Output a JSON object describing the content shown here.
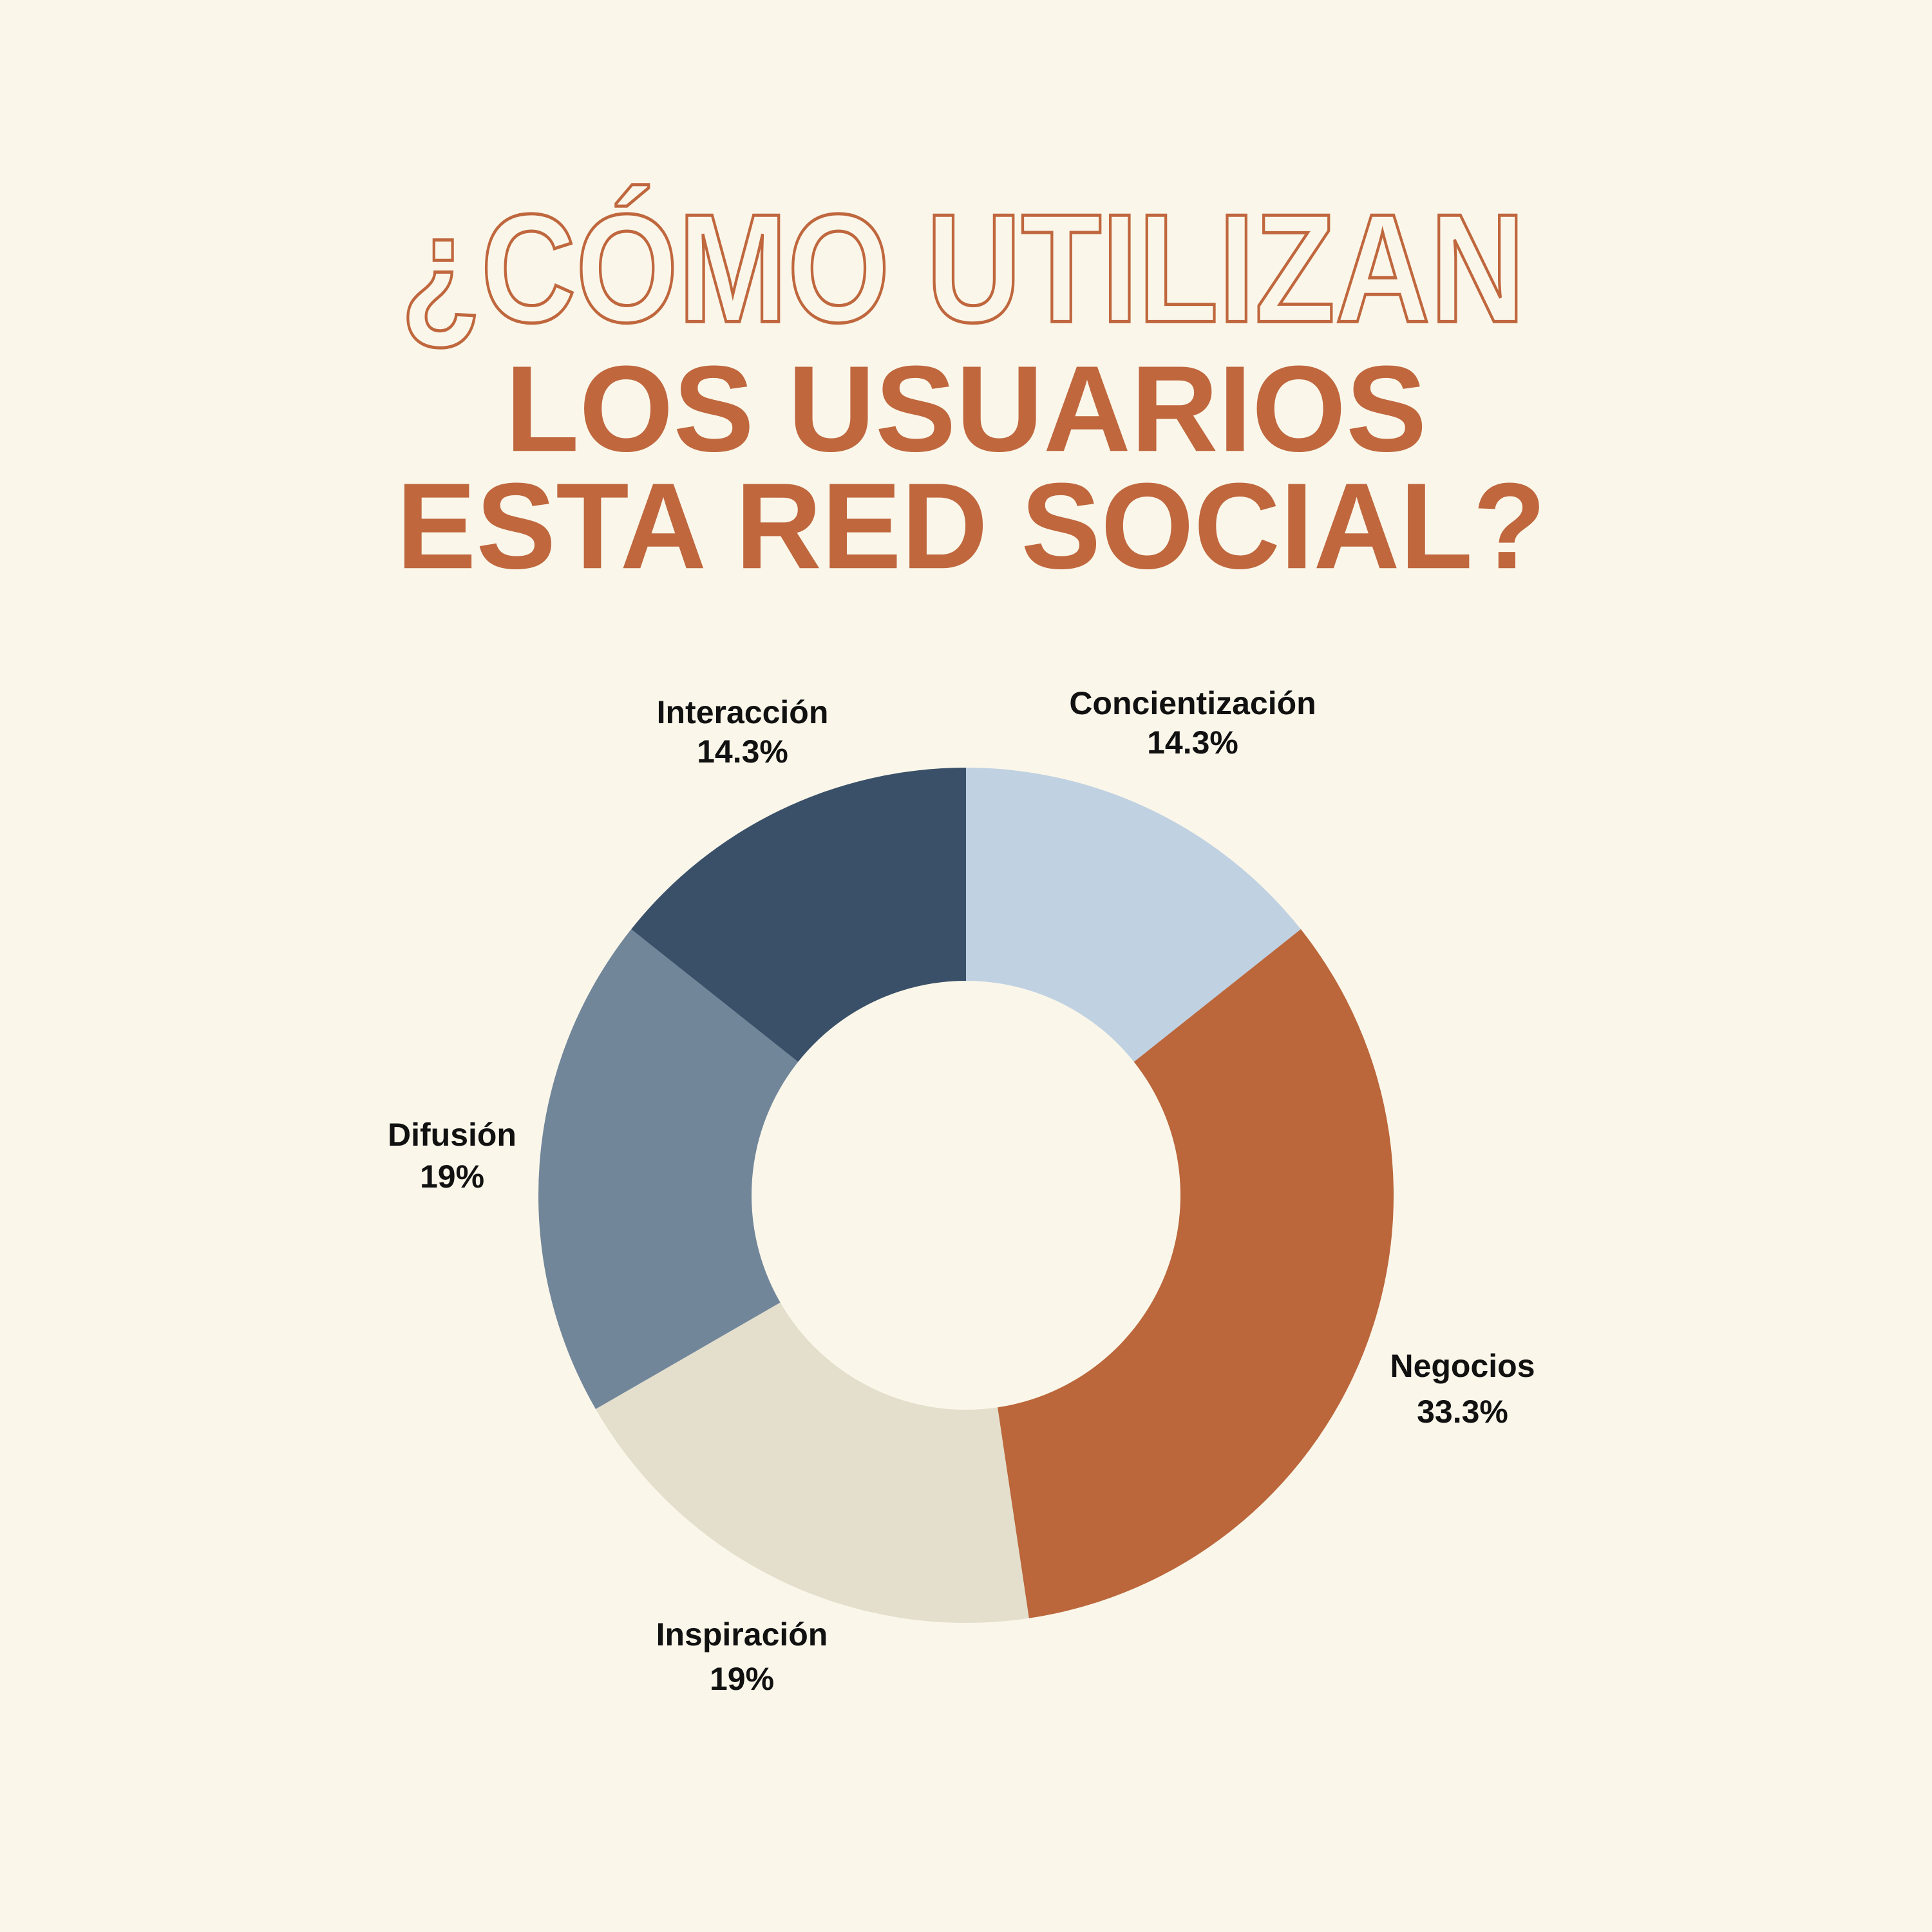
{
  "chart_data": {
    "type": "donut",
    "title_lines": [
      "¿CÓMO UTILIZAN",
      "LOS USUARIOS",
      "ESTA RED SOCIAL?"
    ],
    "categories": [
      "Concientización",
      "Negocios",
      "Inspiración",
      "Difusión",
      "Interacción"
    ],
    "values": [
      14.3,
      33.3,
      19,
      19,
      14.3
    ],
    "value_labels": [
      "14.3%",
      "33.3%",
      "19%",
      "19%",
      "14.3%"
    ],
    "colors": [
      "#c0d1e2",
      "#bb663b",
      "#e3dfcc",
      "#72869a",
      "#3a5069"
    ]
  }
}
